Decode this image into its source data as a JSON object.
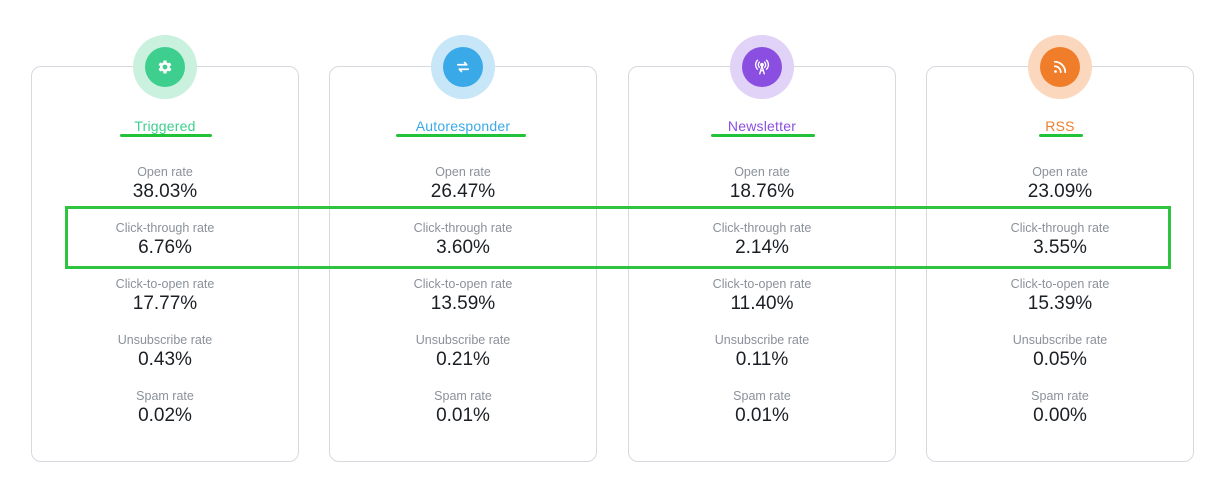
{
  "colors": {
    "triggered": "#3ecf8e",
    "triggered_halo": "#c9f1dd",
    "autoresponder": "#3aa9e8",
    "autoresponder_halo": "#c7e6f8",
    "newsletter": "#8a4fe0",
    "newsletter_halo": "#e1d2f7",
    "rss": "#f07d2a",
    "rss_halo": "#fbd8bd",
    "annotation_green": "#2ec43f"
  },
  "cards": [
    {
      "title": "Triggered",
      "icon": "gear-icon",
      "metrics": [
        {
          "label": "Open rate",
          "value": "38.03%"
        },
        {
          "label": "Click-through rate",
          "value": "6.76%"
        },
        {
          "label": "Click-to-open rate",
          "value": "17.77%"
        },
        {
          "label": "Unsubscribe rate",
          "value": "0.43%"
        },
        {
          "label": "Spam rate",
          "value": "0.02%"
        }
      ]
    },
    {
      "title": "Autoresponder",
      "icon": "repeat-icon",
      "metrics": [
        {
          "label": "Open rate",
          "value": "26.47%"
        },
        {
          "label": "Click-through rate",
          "value": "3.60%"
        },
        {
          "label": "Click-to-open rate",
          "value": "13.59%"
        },
        {
          "label": "Unsubscribe rate",
          "value": "0.21%"
        },
        {
          "label": "Spam rate",
          "value": "0.01%"
        }
      ]
    },
    {
      "title": "Newsletter",
      "icon": "broadcast-icon",
      "metrics": [
        {
          "label": "Open rate",
          "value": "18.76%"
        },
        {
          "label": "Click-through rate",
          "value": "2.14%"
        },
        {
          "label": "Click-to-open rate",
          "value": "11.40%"
        },
        {
          "label": "Unsubscribe rate",
          "value": "0.11%"
        },
        {
          "label": "Spam rate",
          "value": "0.01%"
        }
      ]
    },
    {
      "title": "RSS",
      "icon": "rss-icon",
      "metrics": [
        {
          "label": "Open rate",
          "value": "23.09%"
        },
        {
          "label": "Click-through rate",
          "value": "3.55%"
        },
        {
          "label": "Click-to-open rate",
          "value": "15.39%"
        },
        {
          "label": "Unsubscribe rate",
          "value": "0.05%"
        },
        {
          "label": "Spam rate",
          "value": "0.00%"
        }
      ]
    }
  ]
}
